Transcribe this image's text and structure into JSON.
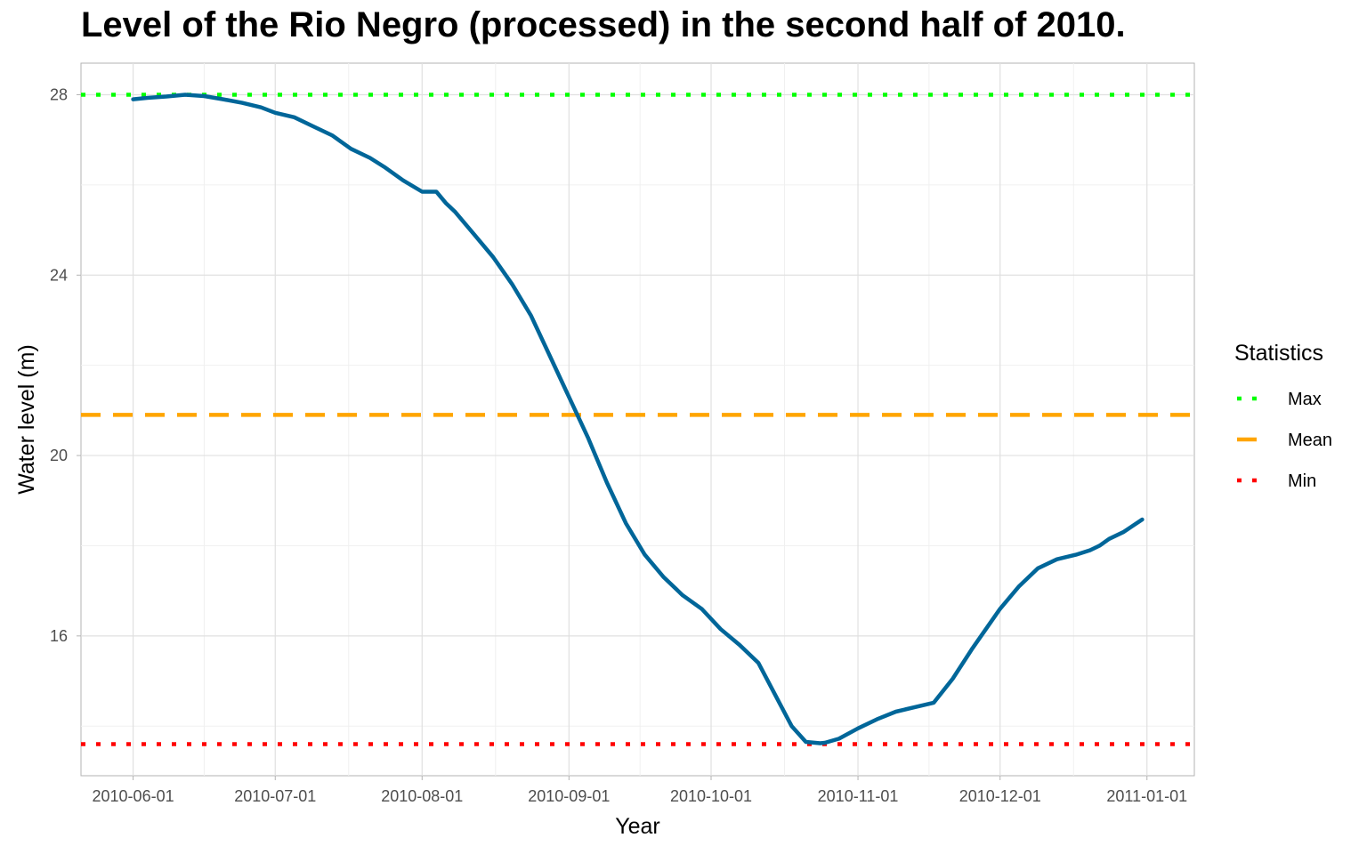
{
  "chart_data": {
    "type": "line",
    "title": "Level of the Rio Negro (processed) in the second half of 2010.",
    "xlabel": "Year",
    "ylabel": "Water level (m)",
    "x_ticks": [
      "2010-06-01",
      "2010-07-01",
      "2010-08-01",
      "2010-09-01",
      "2010-10-01",
      "2010-11-01",
      "2010-12-01",
      "2011-01-01"
    ],
    "y_ticks": [
      16,
      20,
      24,
      28
    ],
    "xlim": [
      "2010-05-21",
      "2011-01-11"
    ],
    "ylim": [
      12.9,
      28.7
    ],
    "grid": true,
    "legend": {
      "title": "Statistics",
      "placement": "right",
      "entries": [
        {
          "name": "Max",
          "color": "#00ff00",
          "style": "dotted"
        },
        {
          "name": "Mean",
          "color": "#ffa500",
          "style": "dashed"
        },
        {
          "name": "Min",
          "color": "#ff0000",
          "style": "dotted"
        }
      ]
    },
    "reference_lines": [
      {
        "name": "Max",
        "value": 28.0,
        "color": "#00ff00",
        "style": "dotted"
      },
      {
        "name": "Mean",
        "value": 20.9,
        "color": "#ffa500",
        "style": "dashed"
      },
      {
        "name": "Min",
        "value": 13.6,
        "color": "#ff0000",
        "style": "dotted"
      }
    ],
    "series": [
      {
        "color": "#006699",
        "x": [
          "2010-06-01",
          "2010-06-04",
          "2010-06-08",
          "2010-06-12",
          "2010-06-16",
          "2010-06-20",
          "2010-06-24",
          "2010-06-28",
          "2010-07-01",
          "2010-07-05",
          "2010-07-09",
          "2010-07-13",
          "2010-07-17",
          "2010-07-21",
          "2010-07-24",
          "2010-07-28",
          "2010-08-01",
          "2010-08-04",
          "2010-08-06",
          "2010-08-08",
          "2010-08-12",
          "2010-08-16",
          "2010-08-20",
          "2010-08-24",
          "2010-08-28",
          "2010-09-01",
          "2010-09-05",
          "2010-09-09",
          "2010-09-13",
          "2010-09-17",
          "2010-09-21",
          "2010-09-25",
          "2010-09-29",
          "2010-10-03",
          "2010-10-07",
          "2010-10-11",
          "2010-10-15",
          "2010-10-18",
          "2010-10-21",
          "2010-10-24",
          "2010-10-25",
          "2010-10-28",
          "2010-11-01",
          "2010-11-05",
          "2010-11-09",
          "2010-11-13",
          "2010-11-17",
          "2010-11-21",
          "2010-11-25",
          "2010-11-29",
          "2010-12-01",
          "2010-12-05",
          "2010-12-09",
          "2010-12-13",
          "2010-12-17",
          "2010-12-20",
          "2010-12-22",
          "2010-12-24",
          "2010-12-27",
          "2010-12-31"
        ],
        "y": [
          27.9,
          27.93,
          27.96,
          28.0,
          27.97,
          27.9,
          27.82,
          27.72,
          27.6,
          27.5,
          27.3,
          27.1,
          26.8,
          26.6,
          26.4,
          26.1,
          25.85,
          25.85,
          25.6,
          25.4,
          24.9,
          24.4,
          23.8,
          23.1,
          22.2,
          21.3,
          20.4,
          19.4,
          18.5,
          17.8,
          17.3,
          16.9,
          16.6,
          16.15,
          15.8,
          15.4,
          14.6,
          14.0,
          13.65,
          13.62,
          13.63,
          13.72,
          13.95,
          14.15,
          14.32,
          14.42,
          14.52,
          15.05,
          15.7,
          16.3,
          16.6,
          17.1,
          17.5,
          17.7,
          17.8,
          17.9,
          18.0,
          18.15,
          18.3,
          18.58
        ]
      }
    ]
  }
}
